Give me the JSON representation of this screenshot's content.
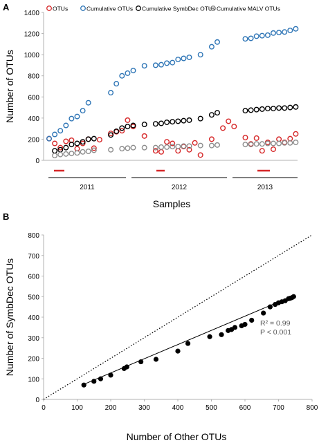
{
  "chart_data": [
    {
      "panel": "A",
      "type": "scatter",
      "ylabel": "Number of OTUs",
      "xlabel": "Samples",
      "ylim": [
        0,
        1400
      ],
      "yticks": [
        0,
        200,
        400,
        600,
        800,
        1000,
        1200,
        1400
      ],
      "grid": false,
      "legend_position": "top",
      "x_groups": [
        "2011",
        "2012",
        "2013"
      ],
      "series": [
        {
          "name": "OTUs",
          "color": "#d62728",
          "points": [
            [
              1,
              205
            ],
            [
              2,
              160
            ],
            [
              3,
              120
            ],
            [
              4,
              180
            ],
            [
              5,
              190
            ],
            [
              6,
              110
            ],
            [
              7,
              160
            ],
            [
              8,
              200
            ],
            [
              9,
              115
            ],
            [
              10,
              195
            ],
            [
              12,
              255
            ],
            [
              13,
              270
            ],
            [
              14,
              280
            ],
            [
              15,
              380
            ],
            [
              16,
              320
            ],
            [
              18,
              230
            ],
            [
              20,
              90
            ],
            [
              21,
              80
            ],
            [
              22,
              175
            ],
            [
              23,
              160
            ],
            [
              24,
              90
            ],
            [
              25,
              130
            ],
            [
              26,
              100
            ],
            [
              27,
              165
            ],
            [
              28,
              50
            ],
            [
              30,
              200
            ],
            [
              32,
              305
            ],
            [
              33,
              370
            ],
            [
              34,
              320
            ],
            [
              36,
              215
            ],
            [
              37,
              155
            ],
            [
              38,
              210
            ],
            [
              39,
              90
            ],
            [
              40,
              170
            ],
            [
              41,
              105
            ],
            [
              42,
              200
            ],
            [
              43,
              170
            ],
            [
              44,
              205
            ],
            [
              45,
              250
            ]
          ]
        },
        {
          "name": "Cumulative OTUs",
          "color": "#2e75b6",
          "points": [
            [
              1,
              205
            ],
            [
              2,
              245
            ],
            [
              3,
              280
            ],
            [
              4,
              330
            ],
            [
              5,
              395
            ],
            [
              6,
              415
            ],
            [
              7,
              470
            ],
            [
              8,
              545
            ],
            [
              12,
              640
            ],
            [
              13,
              725
            ],
            [
              14,
              800
            ],
            [
              15,
              825
            ],
            [
              16,
              850
            ],
            [
              18,
              895
            ],
            [
              20,
              900
            ],
            [
              21,
              905
            ],
            [
              22,
              920
            ],
            [
              23,
              925
            ],
            [
              24,
              955
            ],
            [
              25,
              965
            ],
            [
              26,
              975
            ],
            [
              28,
              1000
            ],
            [
              30,
              1075
            ],
            [
              31,
              1120
            ],
            [
              36,
              1150
            ],
            [
              37,
              1155
            ],
            [
              38,
              1175
            ],
            [
              39,
              1180
            ],
            [
              40,
              1185
            ],
            [
              41,
              1205
            ],
            [
              42,
              1210
            ],
            [
              43,
              1215
            ],
            [
              44,
              1230
            ],
            [
              45,
              1245
            ]
          ]
        },
        {
          "name": "Cumulative SymbDec OTUs",
          "color": "#000000",
          "points": [
            [
              2,
              90
            ],
            [
              3,
              100
            ],
            [
              4,
              120
            ],
            [
              5,
              150
            ],
            [
              6,
              160
            ],
            [
              7,
              175
            ],
            [
              8,
              200
            ],
            [
              9,
              205
            ],
            [
              12,
              240
            ],
            [
              13,
              275
            ],
            [
              14,
              305
            ],
            [
              15,
              320
            ],
            [
              16,
              330
            ],
            [
              18,
              340
            ],
            [
              20,
              345
            ],
            [
              21,
              350
            ],
            [
              22,
              360
            ],
            [
              23,
              365
            ],
            [
              24,
              370
            ],
            [
              25,
              375
            ],
            [
              26,
              380
            ],
            [
              28,
              395
            ],
            [
              30,
              430
            ],
            [
              31,
              450
            ],
            [
              36,
              470
            ],
            [
              37,
              475
            ],
            [
              38,
              480
            ],
            [
              39,
              485
            ],
            [
              40,
              490
            ],
            [
              41,
              490
            ],
            [
              42,
              495
            ],
            [
              43,
              495
            ],
            [
              44,
              500
            ],
            [
              45,
              505
            ]
          ]
        },
        {
          "name": "Cumulative MALV OTUs",
          "color": "#8c8c8c",
          "points": [
            [
              2,
              45
            ],
            [
              3,
              55
            ],
            [
              4,
              60
            ],
            [
              5,
              65
            ],
            [
              6,
              70
            ],
            [
              7,
              80
            ],
            [
              8,
              85
            ],
            [
              9,
              95
            ],
            [
              12,
              100
            ],
            [
              14,
              110
            ],
            [
              15,
              115
            ],
            [
              16,
              120
            ],
            [
              18,
              120
            ],
            [
              20,
              120
            ],
            [
              21,
              125
            ],
            [
              22,
              125
            ],
            [
              23,
              130
            ],
            [
              24,
              130
            ],
            [
              25,
              135
            ],
            [
              26,
              135
            ],
            [
              28,
              140
            ],
            [
              30,
              140
            ],
            [
              31,
              145
            ],
            [
              36,
              150
            ],
            [
              37,
              150
            ],
            [
              38,
              155
            ],
            [
              39,
              155
            ],
            [
              40,
              160
            ],
            [
              41,
              160
            ],
            [
              42,
              160
            ],
            [
              43,
              165
            ],
            [
              44,
              165
            ],
            [
              45,
              170
            ]
          ]
        }
      ]
    },
    {
      "panel": "B",
      "type": "scatter",
      "xlabel": "Number of Other OTUs",
      "ylabel": "Number of SymbDec OTUs",
      "xlim": [
        0,
        800
      ],
      "ylim": [
        0,
        800
      ],
      "xticks": [
        0,
        100,
        200,
        300,
        400,
        500,
        600,
        700,
        800
      ],
      "yticks": [
        0,
        100,
        200,
        300,
        400,
        500,
        600,
        700,
        800
      ],
      "grid": false,
      "annotations": [
        "R² = 0.99",
        "P < 0.001"
      ],
      "fit_line": [
        [
          115,
          70
        ],
        [
          745,
          505
        ]
      ],
      "identity_line": [
        [
          0,
          0
        ],
        [
          800,
          800
        ]
      ],
      "points": [
        [
          120,
          70
        ],
        [
          150,
          88
        ],
        [
          170,
          100
        ],
        [
          200,
          118
        ],
        [
          240,
          150
        ],
        [
          248,
          158
        ],
        [
          290,
          183
        ],
        [
          335,
          195
        ],
        [
          400,
          235
        ],
        [
          430,
          272
        ],
        [
          495,
          305
        ],
        [
          530,
          315
        ],
        [
          550,
          335
        ],
        [
          560,
          340
        ],
        [
          570,
          350
        ],
        [
          590,
          358
        ],
        [
          600,
          365
        ],
        [
          620,
          385
        ],
        [
          655,
          420
        ],
        [
          675,
          450
        ],
        [
          690,
          462
        ],
        [
          700,
          470
        ],
        [
          710,
          475
        ],
        [
          720,
          480
        ],
        [
          730,
          490
        ],
        [
          735,
          492
        ],
        [
          740,
          495
        ],
        [
          745,
          500
        ]
      ]
    }
  ]
}
